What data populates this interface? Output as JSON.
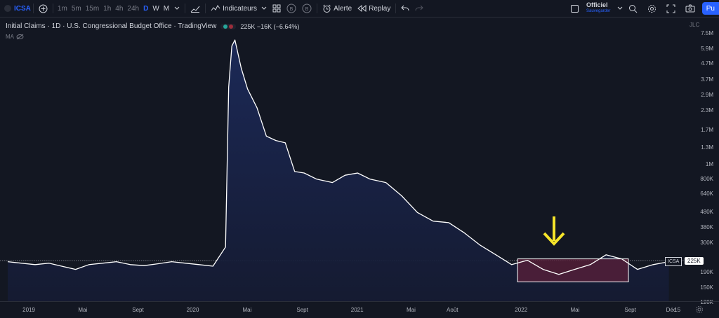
{
  "toolbar": {
    "symbol": "ICSA",
    "intervals": [
      "1m",
      "5m",
      "15m",
      "1h",
      "4h",
      "24h",
      "D",
      "W",
      "M"
    ],
    "active_interval": "D",
    "indicators_label": "Indicateurs",
    "alert_label": "Alerte",
    "replay_label": "Replay",
    "layout_name": "Officiel",
    "save_label": "Sauvegarder",
    "publish_label": "Pu"
  },
  "legend": {
    "title": "Initial Claims · 1D · U.S. Congressional Budget Office · TradingView",
    "value": "225K −16K (−6.64%)",
    "ma_label": "MA"
  },
  "yaxis": {
    "currency_label": "JLC",
    "ticks": [
      "7.5M",
      "5.9M",
      "4.7M",
      "3.7M",
      "2.9M",
      "2.3M",
      "1.7M",
      "1.3M",
      "1M",
      "800K",
      "640K",
      "480K",
      "380K",
      "300K",
      "240K",
      "190K",
      "150K",
      "120K"
    ]
  },
  "xaxis": {
    "ticks": [
      "2019",
      "Mai",
      "Sept",
      "2020",
      "Mai",
      "Sept",
      "2021",
      "Mai",
      "Août",
      "2022",
      "Mai",
      "Sept",
      "Déc",
      "15"
    ]
  },
  "price_tag": {
    "symbol": "ICSA",
    "value": "225K"
  },
  "colors": {
    "line": "#ffffff",
    "accent": "#2962ff",
    "highlight_fill": "#5b1f3a",
    "arrow": "#f5e42a"
  },
  "chart_data": {
    "type": "area",
    "yscale": "log",
    "ylim": [
      120000,
      7500000
    ],
    "x": [
      "2018-11",
      "2018-12",
      "2019-01",
      "2019-02",
      "2019-03",
      "2019-04",
      "2019-05",
      "2019-06",
      "2019-07",
      "2019-08",
      "2019-09",
      "2019-10",
      "2019-11",
      "2019-12",
      "2020-01",
      "2020-02",
      "2020-03-14",
      "2020-03-21",
      "2020-03-28",
      "2020-04-04",
      "2020-04-18",
      "2020-05-02",
      "2020-05-23",
      "2020-06-13",
      "2020-07-04",
      "2020-07-25",
      "2020-08-15",
      "2020-09-05",
      "2020-10-03",
      "2020-11-07",
      "2020-12-05",
      "2021-01-02",
      "2021-01-30",
      "2021-03-06",
      "2021-04-10",
      "2021-05-15",
      "2021-06-19",
      "2021-07-24",
      "2021-08-28",
      "2021-10-02",
      "2021-11-06",
      "2021-12-11",
      "2022-01-15",
      "2022-02-19",
      "2022-03-26",
      "2022-04-30",
      "2022-06-04",
      "2022-07-09",
      "2022-08-13",
      "2022-09-17",
      "2022-10-22",
      "2022-11-26"
    ],
    "values": [
      225000,
      220000,
      215000,
      220000,
      210000,
      200000,
      215000,
      220000,
      225000,
      215000,
      212000,
      218000,
      225000,
      220000,
      215000,
      210000,
      282000,
      3300000,
      6200000,
      6800000,
      4400000,
      3200000,
      2400000,
      1550000,
      1450000,
      1400000,
      900000,
      880000,
      800000,
      760000,
      850000,
      880000,
      800000,
      760000,
      620000,
      480000,
      420000,
      410000,
      350000,
      290000,
      250000,
      215000,
      230000,
      200000,
      185000,
      200000,
      215000,
      250000,
      235000,
      200000,
      215000,
      225000
    ],
    "highlight_box": {
      "x_start": "2022-01-01",
      "x_end": "2022-12-31",
      "y_min": 165000,
      "y_max": 235000
    },
    "current_value": 225000
  }
}
